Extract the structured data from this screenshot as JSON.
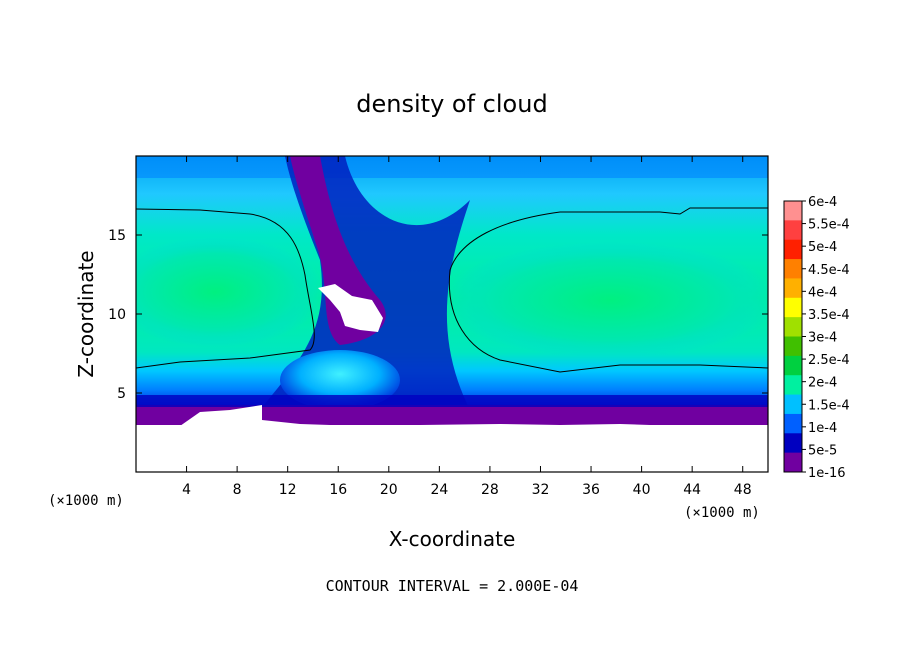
{
  "chart_data": {
    "type": "heatmap",
    "title": "density of cloud",
    "xlabel": "X-coordinate",
    "ylabel": "Z-coordinate",
    "x_unit_left": "(×1000 m)",
    "x_unit_right": "(×1000 m)",
    "footer": "CONTOUR INTERVAL = 2.000E-04",
    "xlim": [
      0,
      50
    ],
    "ylim": [
      0,
      20
    ],
    "xticks": [
      "4",
      "8",
      "12",
      "16",
      "20",
      "24",
      "28",
      "32",
      "36",
      "40",
      "44",
      "48"
    ],
    "xtick_values": [
      4,
      8,
      12,
      16,
      20,
      24,
      28,
      32,
      36,
      40,
      44,
      48
    ],
    "yticks": [
      "5",
      "10",
      "15"
    ],
    "ytick_values": [
      5,
      10,
      15
    ],
    "colorbar": {
      "labels": [
        "6e-4",
        "5.5e-4",
        "5e-4",
        "4.5e-4",
        "4e-4",
        "3.5e-4",
        "3e-4",
        "2.5e-4",
        "2e-4",
        "1.5e-4",
        "1e-4",
        "5e-5",
        "1e-16"
      ],
      "colors": [
        "#ff9090",
        "#ff4040",
        "#ff2000",
        "#ff8000",
        "#ffb000",
        "#ffff00",
        "#a0e000",
        "#40c000",
        "#00d040",
        "#00f0a0",
        "#00c0ff",
        "#0060ff",
        "#0000c0",
        "#7000a0"
      ]
    },
    "regions": [
      {
        "name": "cloud-free-lower-layer",
        "value": 0
      },
      {
        "name": "lower-cloud-boundary",
        "value": 1e-16
      },
      {
        "name": "left-cloud-core",
        "value": 0.00025
      },
      {
        "name": "right-cloud-core",
        "value": 0.00025
      },
      {
        "name": "central-updraft-column",
        "value": 5e-05
      },
      {
        "name": "cloud-top-layer",
        "value": 0.00015
      }
    ],
    "colors": {
      "low": "#7000a0",
      "mid": "#00c0ff",
      "high": "#00f080"
    }
  }
}
